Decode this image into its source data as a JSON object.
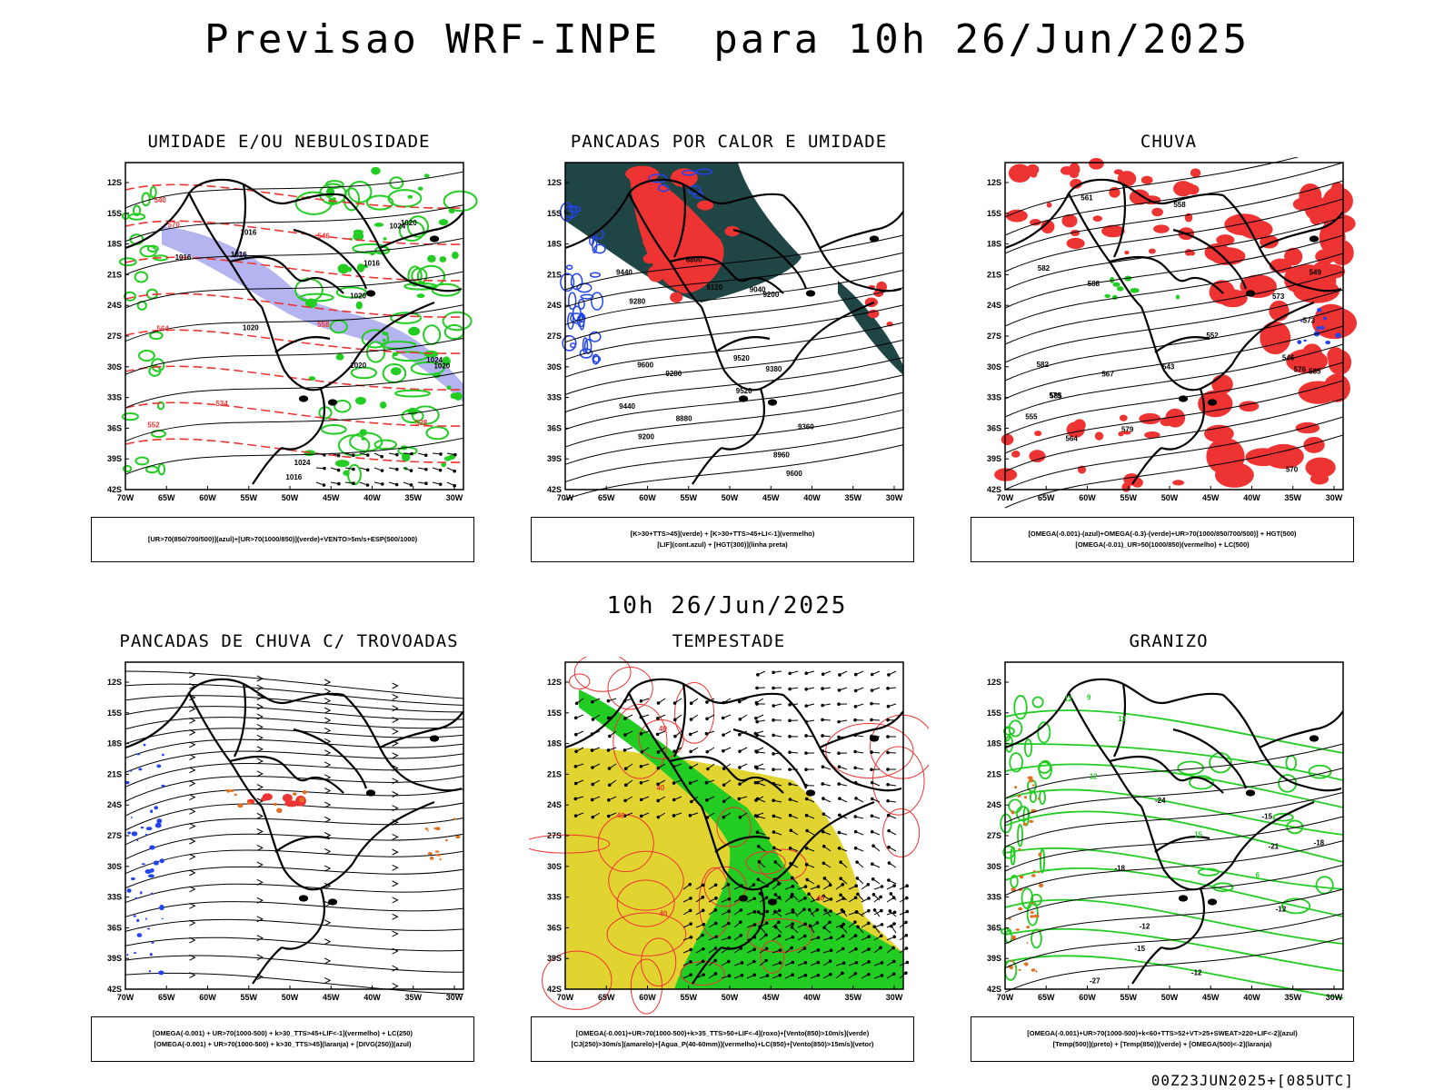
{
  "header": {
    "title": "Previsao WRF-INPE  para 10h 26/Jun/2025",
    "mid_time": "10h 26/Jun/2025",
    "footer_code": "00Z23JUN2025+[085UTC]"
  },
  "axes": {
    "lat_labels": [
      "12S",
      "15S",
      "18S",
      "21S",
      "24S",
      "27S",
      "30S",
      "33S",
      "36S",
      "39S",
      "42S"
    ],
    "lon_labels": [
      "70W",
      "65W",
      "60W",
      "55W",
      "50W",
      "45W",
      "40W",
      "35W",
      "30W"
    ]
  },
  "colors": {
    "humidity_blue": "#b4b4f0",
    "humid_green": "#22cc22",
    "red": "#ee3333",
    "dark_teal": "#1f4545",
    "blue_contour": "#2244ee",
    "yellow": "#e2d430",
    "orange": "#e07020"
  },
  "panels": [
    {
      "title": "UMIDADE E/OU NEBULOSIDADE",
      "legend": [
        "[UR>70(850/700/500)](azul)+[UR>70(1000/850)](verde)+VENTO>5m/s+ESP(500/1000)"
      ],
      "contour_labels": [
        "1016",
        "1016",
        "1020",
        "1024",
        "1024",
        "1016",
        "1020",
        "1020",
        "1020",
        "1020",
        "1024",
        "1016",
        "1016"
      ],
      "red_labels": [
        "570",
        "564",
        "558",
        "552",
        "546",
        "540",
        "534",
        "528"
      ]
    },
    {
      "title": "PANCADAS POR CALOR E UMIDADE",
      "legend": [
        "[K>30+TTS>45](verde) + [K>30+TTS>45+LI<-1](vermelho)",
        "[LIF](cont.azul) + [HGT(300)](linha preta)"
      ],
      "contour_labels": [
        "9600",
        "9600",
        "9520",
        "9440",
        "9360",
        "9280",
        "9200",
        "9280",
        "9200",
        "9120",
        "9040",
        "8960",
        "8880",
        "8800",
        "9520",
        "9440",
        "9380"
      ]
    },
    {
      "title": "CHUVA",
      "legend": [
        "[OMEGA(-0.001)-(azul)+OMEGA(-0.3)-(verde)+UR>70(1000/850/700/500)] + HGT(500)",
        "[OMEGA(-0.01)_UR>50(1000/850)(vermelho) + LC(500)"
      ],
      "contour_labels": [
        "588",
        "585",
        "582",
        "579",
        "576",
        "573",
        "570",
        "567",
        "564",
        "561",
        "558",
        "555",
        "552",
        "549",
        "546",
        "543",
        "585",
        "582",
        "579",
        "573"
      ]
    },
    {
      "title": "PANCADAS DE CHUVA C/ TROVOADAS",
      "legend": [
        "[OMEGA(-0.001) + UR>70(1000-500) + k>30_TTS>45+LIF<-1](vermelho) + LC(250)",
        "[OMEGA(-0.001) + UR>70(1000-500) + k>30_TTS>45](laranja) + [DIVG(250)](azul)"
      ]
    },
    {
      "title": "TEMPESTADE",
      "legend": [
        "[OMEGA(-0.001)+UR>70(1000-500)+k>35_TTS>50+LIF<-4](roxo)+[Vento(850)>10m/s](verde)",
        "[CJ(250)>30m/s](amarelo)+[Agua_P(40-60mm)](vermelho)+LC(850)+[Vento(850)>15m/s](vetor)"
      ],
      "red_labels": [
        "40",
        "40",
        "40",
        "40",
        "40"
      ]
    },
    {
      "title": "GRANIZO",
      "legend": [
        "[OMEGA(-0.001)+UR>70(1000-500)+k<60+TTS>52+VT>25+SWEAT>220+LIF<-2](azul)",
        "[Temp(500)](preto) + [Temp(850)](verde) + [OMEGA(500)<-2](laranja)"
      ],
      "contour_labels": [
        "-12",
        "-15",
        "-18",
        "-21",
        "-24",
        "-27",
        "-12",
        "-12",
        "-15",
        "-18"
      ],
      "green_labels": [
        "15",
        "12",
        "12",
        "12",
        "9",
        "6"
      ]
    }
  ]
}
